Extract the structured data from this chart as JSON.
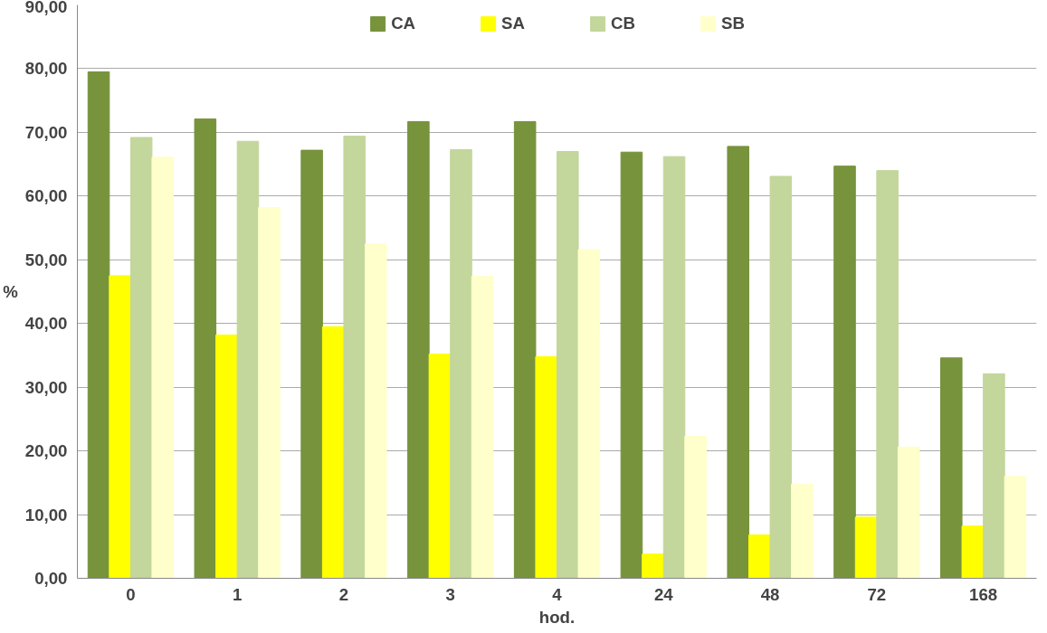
{
  "chart_data": {
    "type": "bar",
    "xlabel": "hod.",
    "ylabel": "%",
    "categories": [
      "0",
      "1",
      "2",
      "3",
      "4",
      "24",
      "48",
      "72",
      "168"
    ],
    "series": [
      {
        "name": "CA",
        "color": "#77933c",
        "values": [
          79.5,
          72.1,
          67.2,
          71.7,
          71.7,
          66.9,
          67.8,
          64.7,
          34.6
        ]
      },
      {
        "name": "SA",
        "color": "#ffff00",
        "values": [
          47.5,
          38.2,
          39.5,
          35.2,
          34.8,
          3.8,
          6.8,
          9.6,
          8.2
        ]
      },
      {
        "name": "CB",
        "color": "#c3d69b",
        "values": [
          69.2,
          68.6,
          69.4,
          67.3,
          67.0,
          66.2,
          63.1,
          64.0,
          32.1
        ]
      },
      {
        "name": "SB",
        "color": "#ffffcc",
        "values": [
          66.1,
          58.2,
          52.5,
          47.4,
          51.6,
          22.3,
          14.8,
          20.6,
          16.0
        ]
      }
    ],
    "ylim": [
      0,
      90
    ],
    "yticks": [
      {
        "value": 0,
        "label": "0,00"
      },
      {
        "value": 10,
        "label": "10,00"
      },
      {
        "value": 20,
        "label": "20,00"
      },
      {
        "value": 30,
        "label": "30,00"
      },
      {
        "value": 40,
        "label": "40,00"
      },
      {
        "value": 50,
        "label": "50,00"
      },
      {
        "value": 60,
        "label": "60,00"
      },
      {
        "value": 70,
        "label": "70,00"
      },
      {
        "value": 80,
        "label": "80,00"
      },
      {
        "value": 90,
        "label": "90,00"
      }
    ],
    "grid": "y",
    "legend": "top"
  }
}
